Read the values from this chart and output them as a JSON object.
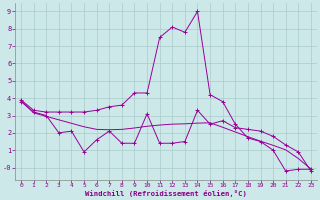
{
  "xlabel": "Windchill (Refroidissement éolien,°C)",
  "background_color": "#cce8e8",
  "grid_color": "#aacccc",
  "line_color": "#990099",
  "xlim": [
    -0.5,
    23.5
  ],
  "ylim": [
    -0.7,
    9.5
  ],
  "xticks": [
    0,
    1,
    2,
    3,
    4,
    5,
    6,
    7,
    8,
    9,
    10,
    11,
    12,
    13,
    14,
    15,
    16,
    17,
    18,
    19,
    20,
    21,
    22,
    23
  ],
  "yticks": [
    9,
    8,
    7,
    6,
    5,
    4,
    3,
    2,
    1,
    0
  ],
  "ytick_labels": [
    "9",
    "8",
    "7",
    "6",
    "5",
    "4",
    "3",
    "2",
    "1",
    "-0"
  ],
  "line1_x": [
    0,
    1,
    2,
    3,
    4,
    5,
    6,
    7,
    8,
    9,
    10,
    11,
    12,
    13,
    14,
    15,
    16,
    17,
    18,
    19,
    20,
    21,
    22,
    23
  ],
  "line1_y": [
    3.9,
    3.3,
    3.2,
    3.2,
    3.2,
    3.2,
    3.3,
    3.5,
    3.6,
    4.3,
    4.3,
    7.5,
    8.1,
    7.8,
    9.0,
    4.2,
    3.8,
    2.5,
    1.7,
    1.5,
    1.0,
    -0.2,
    -0.1,
    -0.1
  ],
  "line2_x": [
    0,
    1,
    2,
    3,
    4,
    5,
    6,
    7,
    8,
    9,
    10,
    11,
    12,
    13,
    14,
    15,
    16,
    17,
    18,
    19,
    20,
    21,
    22,
    23
  ],
  "line2_y": [
    3.8,
    3.2,
    3.0,
    2.0,
    2.1,
    0.9,
    1.6,
    2.1,
    1.4,
    1.4,
    3.1,
    1.4,
    1.4,
    1.5,
    3.3,
    2.5,
    2.7,
    2.3,
    2.2,
    2.1,
    1.8,
    1.3,
    0.9,
    -0.2
  ],
  "line3_x": [
    0,
    1,
    2,
    3,
    4,
    5,
    6,
    7,
    8,
    9,
    10,
    11,
    12,
    13,
    14,
    15,
    16,
    17,
    18,
    19,
    20,
    21,
    22,
    23
  ],
  "line3_y": [
    3.85,
    3.15,
    2.95,
    2.75,
    2.55,
    2.35,
    2.2,
    2.18,
    2.2,
    2.28,
    2.38,
    2.45,
    2.5,
    2.52,
    2.56,
    2.58,
    2.32,
    2.05,
    1.78,
    1.52,
    1.28,
    1.02,
    0.52,
    -0.08
  ]
}
